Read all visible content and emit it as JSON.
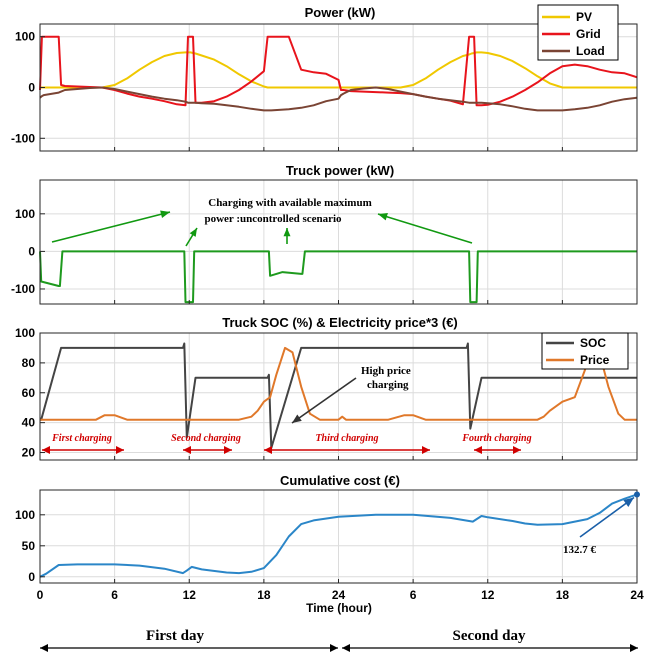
{
  "chart_data": [
    {
      "type": "line",
      "title": "Power (kW)",
      "xlabel": "",
      "ylabel": "",
      "ylim": [
        -125,
        125
      ],
      "yticks": [
        100,
        0,
        -100
      ],
      "x": [
        0,
        0.15,
        0.3,
        1.5,
        1.7,
        2,
        3,
        4,
        5,
        6,
        7,
        8,
        9,
        10,
        11,
        11.7,
        11.9,
        12.1,
        12.3,
        12.5,
        13,
        14,
        15,
        16,
        17,
        18,
        18.3,
        18.6,
        20,
        21,
        22,
        23,
        24,
        24.2,
        24.4,
        25,
        26,
        27,
        28,
        29,
        30,
        31,
        32,
        33,
        34,
        34.5,
        34.7,
        34.9,
        35.1,
        35.3,
        35.5,
        36,
        37,
        38,
        39,
        40,
        41,
        42,
        43,
        44,
        45,
        46,
        47,
        48
      ],
      "series": [
        {
          "name": "PV",
          "color": "#f0c800",
          "values": [
            0,
            0,
            0,
            0,
            0,
            0,
            0,
            0,
            0,
            5,
            18,
            35,
            50,
            62,
            68,
            69,
            69,
            69,
            68,
            67,
            63,
            55,
            42,
            26,
            12,
            2,
            0,
            0,
            0,
            0,
            0,
            0,
            0,
            0,
            0,
            0,
            0,
            0,
            0,
            0,
            5,
            18,
            35,
            50,
            62,
            65,
            67,
            68,
            69,
            69,
            69,
            68,
            62,
            52,
            38,
            22,
            8,
            0,
            0,
            0,
            0,
            0,
            0,
            0
          ]
        },
        {
          "name": "Grid",
          "color": "#e8141c",
          "values": [
            -5,
            100,
            100,
            100,
            5,
            3,
            2,
            1,
            0,
            -5,
            -12,
            -18,
            -22,
            -27,
            -33,
            -35,
            100,
            100,
            100,
            -30,
            -30,
            -27,
            -18,
            -5,
            12,
            32,
            100,
            100,
            100,
            35,
            30,
            27,
            15,
            -5,
            -5,
            -7,
            -8,
            -9,
            -10,
            -11,
            -13,
            -18,
            -22,
            -26,
            -33,
            100,
            100,
            100,
            -35,
            -35,
            -35,
            -34,
            -28,
            -18,
            -5,
            10,
            28,
            42,
            45,
            42,
            35,
            30,
            28,
            20
          ]
        },
        {
          "name": "Load",
          "color": "#7a4434",
          "values": [
            -20,
            -17,
            -15,
            -10,
            -8,
            -5,
            -3,
            -1,
            0,
            -3,
            -8,
            -13,
            -18,
            -22,
            -25,
            -28,
            -30,
            -30,
            -30,
            -30,
            -31,
            -32,
            -35,
            -38,
            -42,
            -45,
            -45,
            -45,
            -43,
            -40,
            -35,
            -27,
            -22,
            -15,
            -12,
            -5,
            -2,
            0,
            -3,
            -8,
            -13,
            -18,
            -22,
            -25,
            -28,
            -30,
            -30,
            -30,
            -30,
            -30,
            -30,
            -31,
            -33,
            -37,
            -42,
            -45,
            -45,
            -45,
            -43,
            -40,
            -35,
            -28,
            -23,
            -20
          ]
        }
      ],
      "legend": {
        "placement": "top-right",
        "entries": [
          "PV",
          "Grid",
          "Load"
        ]
      }
    },
    {
      "type": "line",
      "title": "Truck power (kW)",
      "ylim": [
        -140,
        190
      ],
      "yticks": [
        100,
        0,
        -100
      ],
      "x": [
        0,
        0.1,
        1.5,
        1.6,
        1.8,
        11.6,
        11.7,
        12.3,
        12.4,
        18.4,
        18.5,
        19.5,
        21,
        21.1,
        21.3,
        34.5,
        34.6,
        35.1,
        35.2,
        48
      ],
      "series": [
        {
          "name": "Truck",
          "color": "#1e9a1e",
          "values": [
            0,
            -80,
            -92,
            -92,
            0,
            0,
            -135,
            -135,
            0,
            0,
            -65,
            -55,
            -60,
            -60,
            0,
            0,
            -135,
            -135,
            0,
            0
          ]
        }
      ],
      "annotation": "Charging with available maximum power :uncontrolled scenario"
    },
    {
      "type": "line",
      "title": "Truck SOC (%) & Electricity price*3 (€)",
      "ylim": [
        15,
        100
      ],
      "yticks": [
        100,
        80,
        60,
        40,
        20
      ],
      "series": [
        {
          "name": "SOC",
          "color": "#444444",
          "x": [
            0,
            0.1,
            1.7,
            11.5,
            11.6,
            11.8,
            12.5,
            18.3,
            18.4,
            18.6,
            21.0,
            34.3,
            34.4,
            34.6,
            35.5,
            48
          ],
          "values": [
            42,
            42,
            90,
            90,
            93,
            30,
            70,
            70,
            72,
            23,
            90,
            90,
            93,
            36,
            70,
            70
          ]
        },
        {
          "name": "Price",
          "color": "#e0782a",
          "x": [
            0,
            0.5,
            1.5,
            3,
            4.5,
            5.2,
            6,
            7,
            9,
            12,
            15,
            16,
            17,
            17.5,
            18,
            18.5,
            19,
            19.7,
            20.3,
            21,
            21.7,
            22.5,
            24,
            24.3,
            24.6,
            25,
            28,
            29.3,
            30,
            31,
            33,
            36,
            38,
            40,
            40.5,
            41,
            42,
            43,
            43.8,
            44.4,
            45,
            45.7,
            46.5,
            47,
            48
          ],
          "values": [
            42,
            42,
            42,
            42,
            42,
            45,
            45,
            42,
            42,
            42,
            42,
            42,
            44,
            48,
            54,
            57,
            72,
            90,
            87,
            64,
            46,
            42,
            42,
            44,
            42,
            42,
            42,
            45,
            45,
            42,
            42,
            42,
            42,
            42,
            44,
            48,
            54,
            57,
            75,
            90,
            86,
            64,
            46,
            42,
            42
          ]
        }
      ],
      "legend": {
        "placement": "top-right",
        "entries": [
          "SOC",
          "Price"
        ]
      },
      "annotations": [
        "High price charging",
        "First charging",
        "Second charging",
        "Third charging",
        "Fourth charging"
      ]
    },
    {
      "type": "line",
      "title": "Cumulative cost (€)",
      "xlabel": "Time (hour)",
      "ylim": [
        -10,
        140
      ],
      "yticks": [
        100,
        50,
        0
      ],
      "x": [
        0,
        0.5,
        1.5,
        3,
        6,
        8,
        10,
        11.5,
        11.8,
        12.2,
        13,
        15,
        16,
        17,
        18,
        19,
        20,
        21,
        22,
        24,
        27,
        30,
        33,
        34.8,
        35.5,
        36,
        38,
        39,
        40,
        42,
        44,
        45,
        46,
        47,
        48
      ],
      "series": [
        {
          "name": "Cost",
          "color": "#2b86c8",
          "values": [
            0,
            5,
            19,
            20,
            20,
            18,
            13,
            6,
            10,
            16,
            12,
            7,
            6,
            8,
            14,
            35,
            65,
            85,
            91,
            97,
            100,
            100,
            95,
            89,
            98,
            96,
            90,
            86,
            84,
            85,
            93,
            103,
            118,
            126,
            132.7
          ]
        }
      ],
      "annotation": "132.7 €"
    }
  ],
  "x_tick_labels": [
    "0",
    "6",
    "12",
    "18",
    "24",
    "6",
    "12",
    "18",
    "24"
  ],
  "x_axis_label": "Time (hour)",
  "day_labels": [
    "First day",
    "Second day"
  ],
  "text": {
    "title_power": "Power (kW)",
    "title_truck": "Truck power (kW)",
    "title_soc": "Truck SOC (%) & Electricity price*3 (€)",
    "title_cost": "Cumulative cost (€)",
    "legend_pv": "PV",
    "legend_grid": "Grid",
    "legend_load": "Load",
    "legend_soc": "SOC",
    "legend_price": "Price",
    "ann_charging_1": "Charging with available maximum",
    "ann_charging_2": "power :uncontrolled scenario",
    "ann_high_1": "High price",
    "ann_high_2": "charging",
    "ann_first": "First charging",
    "ann_second": "Second charging",
    "ann_third": "Third charging",
    "ann_fourth": "Fourth charging",
    "ann_cost": "132.7 €"
  },
  "colors": {
    "pv": "#f0c800",
    "grid": "#e8141c",
    "load": "#7a4434",
    "truck": "#1e9a1e",
    "soc": "#444444",
    "price": "#e0782a",
    "cost": "#2b86c8",
    "annotation_green": "#119911",
    "annotation_red": "#d10000",
    "annotation_blue": "#1a5fa8"
  }
}
